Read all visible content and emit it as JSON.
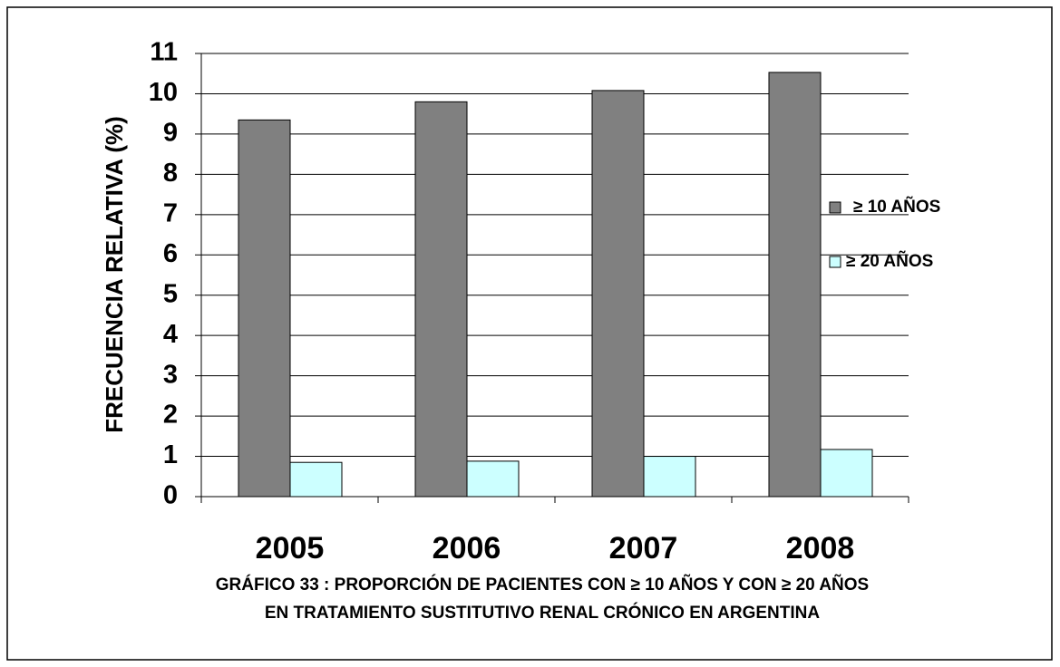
{
  "chart_data": {
    "type": "bar",
    "title_lines": [
      "GRÁFICO 33 : PROPORCIÓN DE PACIENTES CON ≥ 10 AÑOS Y CON ≥ 20 AÑOS",
      "EN TRATAMIENTO SUSTITUTIVO RENAL CRÓNICO EN ARGENTINA"
    ],
    "y_label": "FRECUENCIA RELATIVA (%)",
    "categories": [
      "2005",
      "2006",
      "2007",
      "2008"
    ],
    "series": [
      {
        "name": "≥ 10 AÑOS",
        "color": "#808080",
        "values": [
          9.35,
          9.8,
          10.08,
          10.53
        ]
      },
      {
        "name": "≥ 20 AÑOS",
        "color": "#ccffff",
        "values": [
          0.85,
          0.88,
          1.0,
          1.17
        ]
      }
    ],
    "ylim": [
      0,
      11
    ],
    "yticks": [
      0,
      1,
      2,
      3,
      4,
      5,
      6,
      7,
      8,
      9,
      10,
      11
    ],
    "grid": true,
    "legend": "right"
  }
}
